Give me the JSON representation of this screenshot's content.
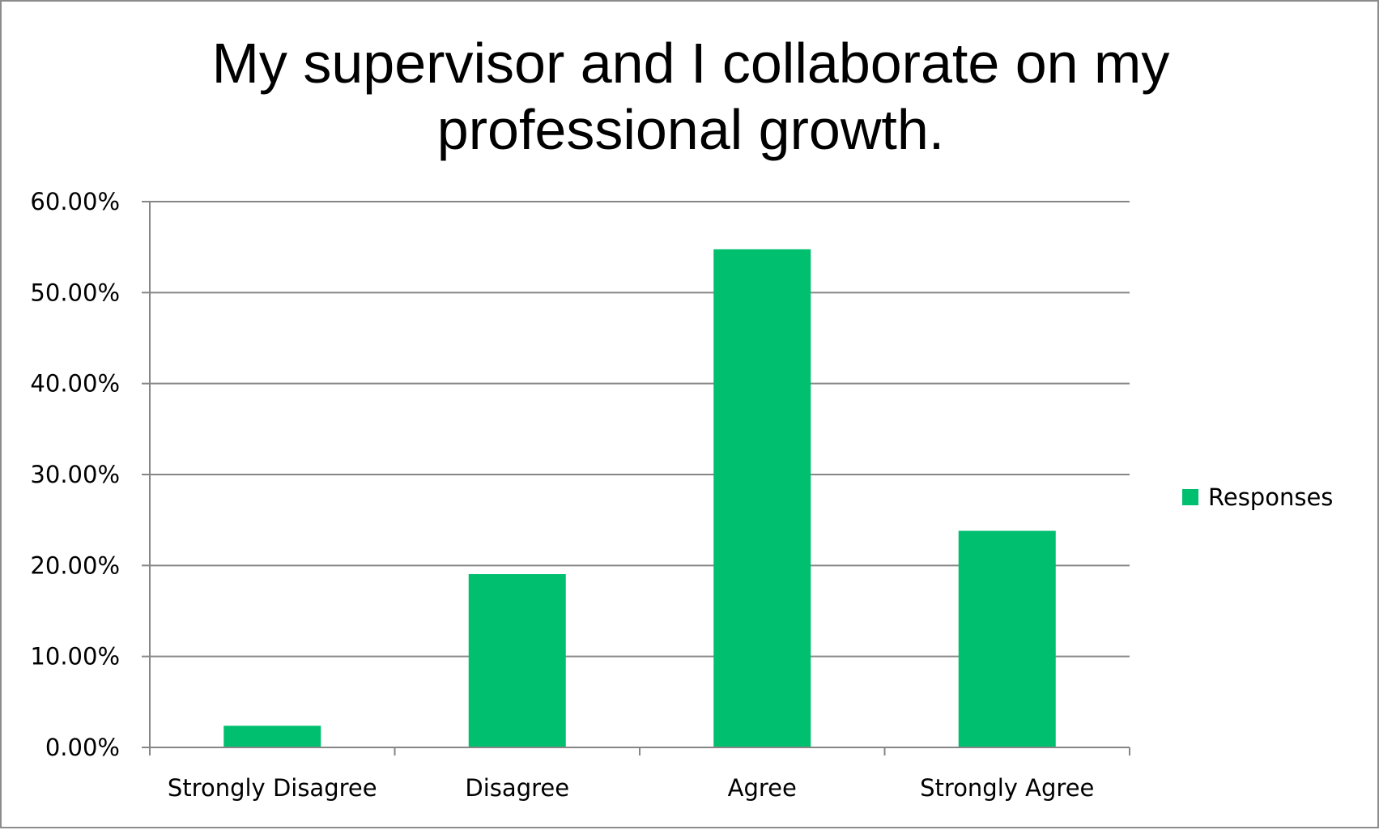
{
  "chart_data": {
    "type": "bar",
    "title": "My supervisor and I collaborate on my professional growth.",
    "title_lines": [
      "My supervisor and I collaborate on my",
      "professional growth."
    ],
    "categories": [
      "Strongly Disagree",
      "Disagree",
      "Agree",
      "Strongly Agree"
    ],
    "series": [
      {
        "name": "Responses",
        "color": "#00bf6f",
        "values": [
          2.38,
          19.05,
          54.76,
          23.81
        ]
      }
    ],
    "ylim": [
      0,
      60
    ],
    "ytick_step": 10,
    "ytick_labels": [
      "0.00%",
      "10.00%",
      "20.00%",
      "30.00%",
      "40.00%",
      "50.00%",
      "60.00%"
    ],
    "xlabel": "",
    "ylabel": "",
    "grid": true,
    "gridline_color": "#868686",
    "legend_position": "right"
  }
}
